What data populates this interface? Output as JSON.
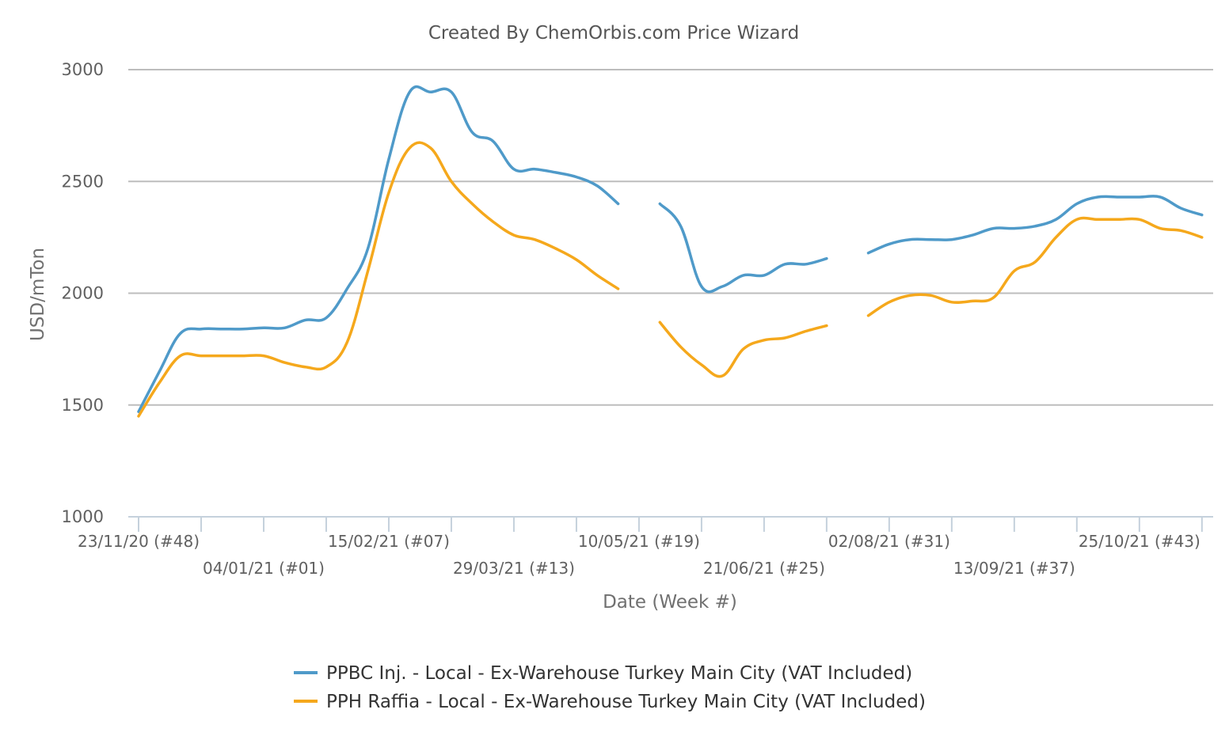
{
  "chart_data": {
    "type": "line",
    "title": "Created By ChemOrbis.com Price Wizard",
    "xlabel": "Date (Week #)",
    "ylabel": "USD/mTon",
    "ylim": [
      1000,
      3000
    ],
    "yticks": [
      1000,
      1500,
      2000,
      2500,
      3000
    ],
    "xlim": [
      0,
      51.1
    ],
    "grid": "horizontal",
    "legend_position": "bottom",
    "x_ticks": [
      {
        "x": 0,
        "label": "23/11/20 (#48)"
      },
      {
        "x": 6,
        "label": "04/01/21 (#01)"
      },
      {
        "x": 12,
        "label": "15/02/21 (#07)"
      },
      {
        "x": 18,
        "label": "29/03/21 (#13)"
      },
      {
        "x": 24,
        "label": "10/05/21 (#19)"
      },
      {
        "x": 30,
        "label": "21/06/21 (#25)"
      },
      {
        "x": 36,
        "label": "02/08/21 (#31)"
      },
      {
        "x": 42,
        "label": "13/09/21 (#37)"
      },
      {
        "x": 48,
        "label": "25/10/21 (#43)"
      }
    ],
    "x_minor_ticks": [
      3,
      9,
      15,
      21,
      27,
      33,
      39,
      45,
      51
    ],
    "series": [
      {
        "name": "PPBC Inj. - Local - Ex-Warehouse Turkey Main City  (VAT Included)",
        "color": "#4f9ac9",
        "points": [
          [
            0,
            1470
          ],
          [
            1,
            1650
          ],
          [
            2,
            1820
          ],
          [
            3,
            1840
          ],
          [
            4,
            1840
          ],
          [
            5,
            1840
          ],
          [
            6,
            1845
          ],
          [
            7,
            1845
          ],
          [
            8,
            1880
          ],
          [
            9,
            1890
          ],
          [
            10,
            2020
          ],
          [
            11,
            2200
          ],
          [
            12,
            2600
          ],
          [
            13,
            2900
          ],
          [
            14,
            2900
          ],
          [
            15,
            2900
          ],
          [
            16,
            2720
          ],
          [
            17,
            2680
          ],
          [
            18,
            2555
          ],
          [
            19,
            2555
          ],
          [
            20,
            2540
          ],
          [
            21,
            2520
          ],
          [
            22,
            2480
          ],
          [
            23,
            2400
          ],
          null,
          [
            25,
            2400
          ],
          [
            26,
            2300
          ],
          [
            27,
            2030
          ],
          [
            28,
            2030
          ],
          [
            29,
            2080
          ],
          [
            30,
            2080
          ],
          [
            31,
            2130
          ],
          [
            32,
            2130
          ],
          [
            33,
            2155
          ],
          null,
          [
            35,
            2180
          ],
          [
            36,
            2220
          ],
          [
            37,
            2240
          ],
          [
            38,
            2240
          ],
          [
            39,
            2240
          ],
          [
            40,
            2260
          ],
          [
            41,
            2290
          ],
          [
            42,
            2290
          ],
          [
            43,
            2300
          ],
          [
            44,
            2330
          ],
          [
            45,
            2400
          ],
          [
            46,
            2430
          ],
          [
            47,
            2430
          ],
          [
            48,
            2430
          ],
          [
            49,
            2430
          ],
          [
            50,
            2380
          ],
          [
            51,
            2350
          ]
        ]
      },
      {
        "name": "PPH Raffia - Local - Ex-Warehouse Turkey Main City  (VAT Included)",
        "color": "#f5a81c",
        "points": [
          [
            0,
            1450
          ],
          [
            1,
            1600
          ],
          [
            2,
            1720
          ],
          [
            3,
            1720
          ],
          [
            4,
            1720
          ],
          [
            5,
            1720
          ],
          [
            6,
            1720
          ],
          [
            7,
            1690
          ],
          [
            8,
            1670
          ],
          [
            9,
            1670
          ],
          [
            10,
            1780
          ],
          [
            11,
            2100
          ],
          [
            12,
            2450
          ],
          [
            13,
            2650
          ],
          [
            14,
            2650
          ],
          [
            15,
            2500
          ],
          [
            16,
            2400
          ],
          [
            17,
            2320
          ],
          [
            18,
            2260
          ],
          [
            19,
            2240
          ],
          [
            20,
            2200
          ],
          [
            21,
            2150
          ],
          [
            22,
            2080
          ],
          [
            23,
            2020
          ],
          null,
          [
            25,
            1870
          ],
          [
            26,
            1760
          ],
          [
            27,
            1680
          ],
          [
            28,
            1630
          ],
          [
            29,
            1750
          ],
          [
            30,
            1790
          ],
          [
            31,
            1800
          ],
          [
            32,
            1830
          ],
          [
            33,
            1855
          ],
          null,
          [
            35,
            1900
          ],
          [
            36,
            1960
          ],
          [
            37,
            1990
          ],
          [
            38,
            1990
          ],
          [
            39,
            1960
          ],
          [
            40,
            1965
          ],
          [
            41,
            1980
          ],
          [
            42,
            2100
          ],
          [
            43,
            2140
          ],
          [
            44,
            2250
          ],
          [
            45,
            2330
          ],
          [
            46,
            2330
          ],
          [
            47,
            2330
          ],
          [
            48,
            2330
          ],
          [
            49,
            2290
          ],
          [
            50,
            2280
          ],
          [
            51,
            2250
          ]
        ]
      }
    ]
  }
}
